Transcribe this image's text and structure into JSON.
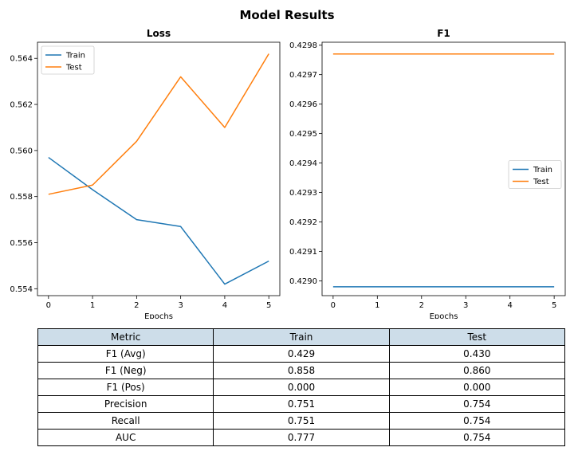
{
  "figure": {
    "title": "Model Results"
  },
  "chart_data": [
    {
      "type": "line",
      "title": "Loss",
      "xlabel": "Epochs",
      "ylabel": "",
      "x": [
        0,
        1,
        2,
        3,
        4,
        5
      ],
      "xlim": [
        -0.25,
        5.25
      ],
      "ylim": [
        0.5537,
        0.5647
      ],
      "xticks": [
        "0",
        "1",
        "2",
        "3",
        "4",
        "5"
      ],
      "yticks": [
        0.554,
        0.556,
        0.558,
        0.56,
        0.562,
        0.564
      ],
      "ytick_labels": [
        "0.554",
        "0.556",
        "0.558",
        "0.560",
        "0.562",
        "0.564"
      ],
      "grid": false,
      "legend_placement": "top-left",
      "series": [
        {
          "name": "Train",
          "color": "#1f77b4",
          "values": [
            0.5597,
            0.5583,
            0.557,
            0.5567,
            0.5542,
            0.5552
          ]
        },
        {
          "name": "Test",
          "color": "#ff7f0e",
          "values": [
            0.5581,
            0.5585,
            0.5604,
            0.5632,
            0.561,
            0.5642
          ]
        }
      ]
    },
    {
      "type": "line",
      "title": "F1",
      "xlabel": "Epochs",
      "ylabel": "",
      "x": [
        0,
        1,
        2,
        3,
        4,
        5
      ],
      "xlim": [
        -0.25,
        5.25
      ],
      "ylim": [
        0.42895,
        0.42981
      ],
      "xticks": [
        "0",
        "1",
        "2",
        "3",
        "4",
        "5"
      ],
      "yticks": [
        0.429,
        0.4291,
        0.4292,
        0.4293,
        0.4294,
        0.4295,
        0.4296,
        0.4297,
        0.4298
      ],
      "ytick_labels": [
        "0.4290",
        "0.4291",
        "0.4292",
        "0.4293",
        "0.4294",
        "0.4295",
        "0.4296",
        "0.4297",
        "0.4298"
      ],
      "grid": false,
      "legend_placement": "center-right",
      "series": [
        {
          "name": "Train",
          "color": "#1f77b4",
          "values": [
            0.42898,
            0.42898,
            0.42898,
            0.42898,
            0.42898,
            0.42898
          ]
        },
        {
          "name": "Test",
          "color": "#ff7f0e",
          "values": [
            0.42977,
            0.42977,
            0.42977,
            0.42977,
            0.42977,
            0.42977
          ]
        }
      ]
    }
  ],
  "table": {
    "header_color": "#cddde9",
    "headers": [
      "Metric",
      "Train",
      "Test"
    ],
    "rows": [
      [
        "F1 (Avg)",
        "0.429",
        "0.430"
      ],
      [
        "F1 (Neg)",
        "0.858",
        "0.860"
      ],
      [
        "F1 (Pos)",
        "0.000",
        "0.000"
      ],
      [
        "Precision",
        "0.751",
        "0.754"
      ],
      [
        "Recall",
        "0.751",
        "0.754"
      ],
      [
        "AUC",
        "0.777",
        "0.754"
      ]
    ]
  }
}
